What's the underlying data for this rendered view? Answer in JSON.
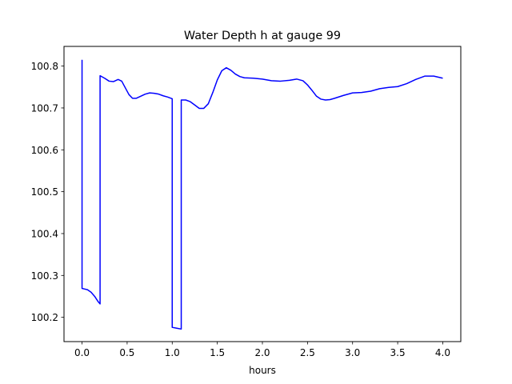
{
  "chart_data": {
    "type": "line",
    "title": "Water Depth h at gauge 99",
    "xlabel": "hours",
    "ylabel": "",
    "xlim": [
      -0.2,
      4.2
    ],
    "ylim": [
      100.142,
      100.847
    ],
    "xticks": [
      0.0,
      0.5,
      1.0,
      1.5,
      2.0,
      2.5,
      3.0,
      3.5,
      4.0
    ],
    "xtick_labels": [
      "0.0",
      "0.5",
      "1.0",
      "1.5",
      "2.0",
      "2.5",
      "3.0",
      "3.5",
      "4.0"
    ],
    "yticks": [
      100.2,
      100.3,
      100.4,
      100.5,
      100.6,
      100.7,
      100.8
    ],
    "ytick_labels": [
      "100.2",
      "100.3",
      "100.4",
      "100.5",
      "100.6",
      "100.7",
      "100.8"
    ],
    "grid": false,
    "series": [
      {
        "color": "#0000ff",
        "x": [
          0.0,
          0.0,
          0.02,
          0.06,
          0.1,
          0.14,
          0.18,
          0.2,
          0.2,
          0.25,
          0.3,
          0.35,
          0.4,
          0.44,
          0.48,
          0.52,
          0.56,
          0.6,
          0.65,
          0.7,
          0.75,
          0.8,
          0.85,
          0.9,
          0.95,
          1.0,
          1.0,
          1.05,
          1.1,
          1.1,
          1.15,
          1.2,
          1.25,
          1.3,
          1.35,
          1.4,
          1.45,
          1.5,
          1.55,
          1.6,
          1.65,
          1.7,
          1.75,
          1.8,
          1.9,
          2.0,
          2.1,
          2.2,
          2.3,
          2.38,
          2.45,
          2.5,
          2.55,
          2.6,
          2.65,
          2.7,
          2.75,
          2.8,
          2.9,
          3.0,
          3.1,
          3.2,
          3.3,
          3.4,
          3.5,
          3.6,
          3.7,
          3.8,
          3.9,
          4.0
        ],
        "y": [
          100.815,
          100.269,
          100.268,
          100.266,
          100.26,
          100.25,
          100.237,
          100.232,
          100.777,
          100.771,
          100.764,
          100.763,
          100.768,
          100.764,
          100.748,
          100.732,
          100.723,
          100.723,
          100.728,
          100.733,
          100.736,
          100.735,
          100.733,
          100.729,
          100.726,
          100.722,
          100.176,
          100.174,
          100.172,
          100.719,
          100.719,
          100.715,
          100.707,
          100.699,
          100.699,
          100.71,
          100.737,
          100.767,
          100.789,
          100.796,
          100.79,
          100.781,
          100.775,
          100.772,
          100.771,
          100.769,
          100.765,
          100.764,
          100.766,
          100.769,
          100.765,
          100.755,
          100.742,
          100.728,
          100.721,
          100.719,
          100.72,
          100.723,
          100.73,
          100.736,
          100.737,
          100.74,
          100.746,
          100.749,
          100.751,
          100.758,
          100.768,
          100.776,
          100.776,
          100.771
        ]
      }
    ]
  }
}
